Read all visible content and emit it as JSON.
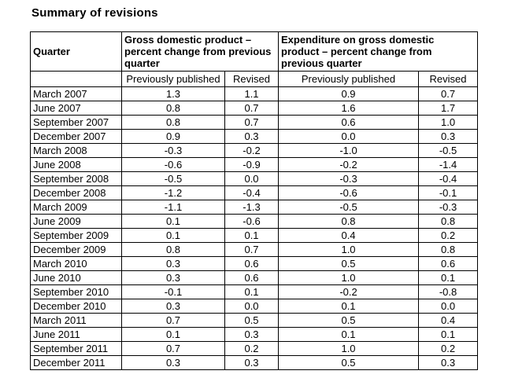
{
  "title": "Summary of revisions",
  "colors": {
    "background": "#ffffff",
    "text": "#000000",
    "border": "#000000"
  },
  "table": {
    "headers": {
      "quarter": "Quarter",
      "gdp_group": "Gross domestic product – percent change from previous quarter",
      "exp_group": "Expenditure on gross domestic product – percent change from previous quarter",
      "gdp_previously_published": "Previously published",
      "gdp_revised": "Revised",
      "exp_previously_published": "Previously published",
      "exp_revised": "Revised"
    },
    "rows": [
      [
        "March 2007",
        "1.3",
        "1.1",
        "0.9",
        "0.7"
      ],
      [
        "June 2007",
        "0.8",
        "0.7",
        "1.6",
        "1.7"
      ],
      [
        "September 2007",
        "0.8",
        "0.7",
        "0.6",
        "1.0"
      ],
      [
        "December 2007",
        "0.9",
        "0.3",
        "0.0",
        "0.3"
      ],
      [
        "March 2008",
        "-0.3",
        "-0.2",
        "-1.0",
        "-0.5"
      ],
      [
        "June 2008",
        "-0.6",
        "-0.9",
        "-0.2",
        "-1.4"
      ],
      [
        "September 2008",
        "-0.5",
        "0.0",
        "-0.3",
        "-0.4"
      ],
      [
        "December 2008",
        "-1.2",
        "-0.4",
        "-0.6",
        "-0.1"
      ],
      [
        "March 2009",
        "-1.1",
        "-1.3",
        "-0.5",
        "-0.3"
      ],
      [
        "June 2009",
        "0.1",
        "-0.6",
        "0.8",
        "0.8"
      ],
      [
        "September 2009",
        "0.1",
        "0.1",
        "0.4",
        "0.2"
      ],
      [
        "December 2009",
        "0.8",
        "0.7",
        "1.0",
        "0.8"
      ],
      [
        "March 2010",
        "0.3",
        "0.6",
        "0.5",
        "0.6"
      ],
      [
        "June 2010",
        "0.3",
        "0.6",
        "1.0",
        "0.1"
      ],
      [
        "September 2010",
        "-0.1",
        "0.1",
        "-0.2",
        "-0.8"
      ],
      [
        "December 2010",
        "0.3",
        "0.0",
        "0.1",
        "0.0"
      ],
      [
        "March 2011",
        "0.7",
        "0.5",
        "0.5",
        "0.4"
      ],
      [
        "June 2011",
        "0.1",
        "0.3",
        "0.1",
        "0.1"
      ],
      [
        "September 2011",
        "0.7",
        "0.2",
        "1.0",
        "0.2"
      ],
      [
        "December 2011",
        "0.3",
        "0.3",
        "0.5",
        "0.3"
      ]
    ]
  }
}
